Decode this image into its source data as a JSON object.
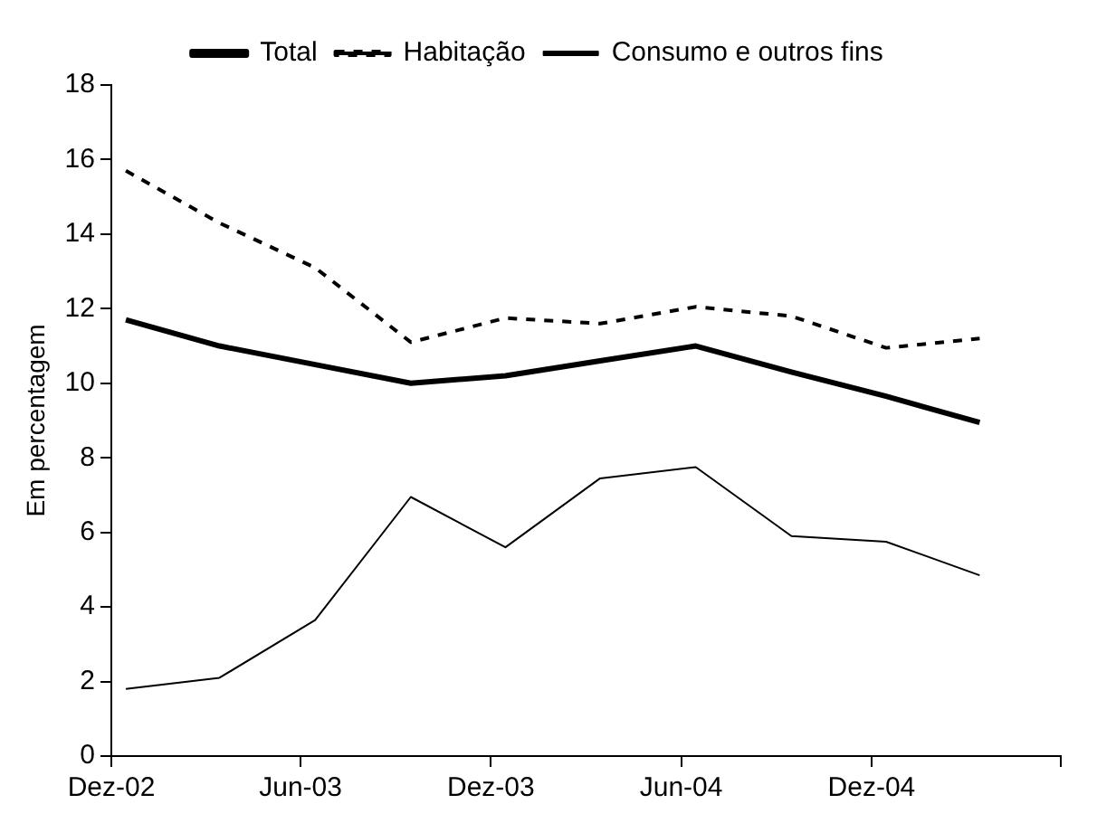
{
  "chart_data": {
    "type": "line",
    "ylabel": "Em percentagem",
    "x": [
      "2002-12-15",
      "2003-03-15",
      "2003-06-15",
      "2003-09-15",
      "2003-12-15",
      "2004-03-15",
      "2004-06-15",
      "2004-09-15",
      "2004-12-15",
      "2005-03-15"
    ],
    "xlim": [
      "2002-12",
      "2005-06"
    ],
    "xticks": [
      {
        "value": "2002-12",
        "label": "Dez-02"
      },
      {
        "value": "2003-06",
        "label": "Jun-03"
      },
      {
        "value": "2003-12",
        "label": "Dez-03"
      },
      {
        "value": "2004-06",
        "label": "Jun-04"
      },
      {
        "value": "2004-12",
        "label": "Dez-04"
      },
      {
        "value": "2005-06",
        "label": null
      }
    ],
    "ylim": [
      0,
      18
    ],
    "yticks": [
      0,
      2,
      4,
      6,
      8,
      10,
      12,
      14,
      16,
      18
    ],
    "grid": false,
    "legend": "top",
    "marker": "none",
    "series": [
      {
        "name": "Total",
        "color": "#000000",
        "line_style": "solid",
        "values": [
          11.7,
          11.0,
          10.5,
          10.0,
          10.2,
          10.6,
          11.0,
          10.3,
          9.65,
          8.95
        ]
      },
      {
        "name": "Habitação",
        "color": "#000000",
        "line_style": "dashed",
        "values": [
          15.7,
          14.3,
          13.1,
          11.1,
          11.75,
          11.6,
          12.05,
          11.8,
          10.95,
          11.2
        ]
      },
      {
        "name": "Consumo e outros fins",
        "color": "#000000",
        "line_style": "solid",
        "values": [
          1.8,
          2.1,
          3.65,
          6.95,
          5.6,
          7.45,
          7.75,
          5.9,
          5.75,
          4.85
        ]
      }
    ]
  }
}
